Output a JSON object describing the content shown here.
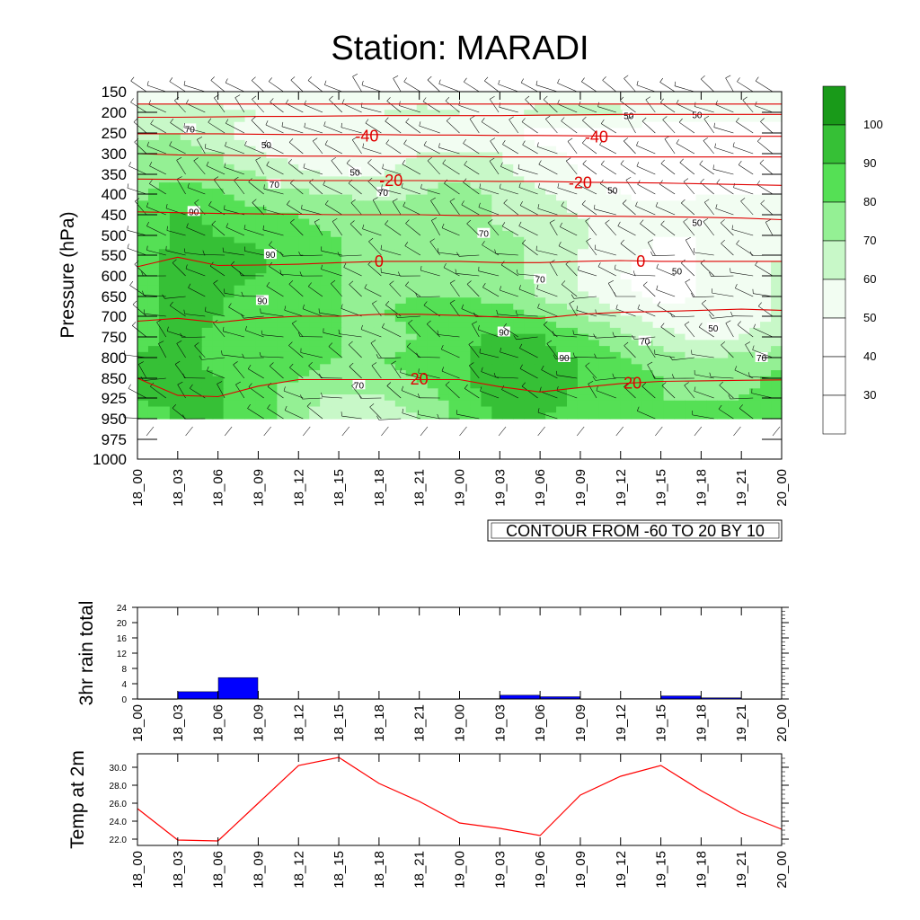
{
  "page": {
    "title": "Station: MARADI"
  },
  "chart_data": [
    {
      "id": "pressure-time",
      "type": "heatmap",
      "title": "Station: MARADI",
      "ylabel": "Pressure (hPa)",
      "xlabel": "",
      "x_ticks": [
        "18_00",
        "18_03",
        "18_06",
        "18_09",
        "18_12",
        "18_15",
        "18_18",
        "18_21",
        "19_00",
        "19_03",
        "19_06",
        "19_09",
        "19_12",
        "19_15",
        "19_18",
        "19_21",
        "20_00"
      ],
      "y_ticks": [
        "150",
        "200",
        "250",
        "300",
        "350",
        "400",
        "450",
        "500",
        "550",
        "600",
        "650",
        "700",
        "750",
        "800",
        "850",
        "925",
        "950",
        "975",
        "1000"
      ],
      "fill_variable": "relative humidity (%)",
      "fill_levels": [
        "30",
        "40",
        "50",
        "60",
        "70",
        "80",
        "90",
        "100"
      ],
      "fill_colors": [
        "#ffffff",
        "#ffffff",
        "#f2fdf2",
        "#c8f8c8",
        "#94f094",
        "#55e055",
        "#36c036",
        "#199a19"
      ],
      "humidity_grid_levels_hpa": [
        150,
        200,
        250,
        300,
        350,
        400,
        450,
        500,
        550,
        600,
        650,
        700,
        750,
        800,
        850,
        925,
        950
      ],
      "humidity_grid": [
        [
          55,
          55,
          55,
          55,
          55,
          55,
          55,
          55,
          55,
          55,
          55,
          55,
          55,
          55,
          55,
          55,
          55
        ],
        [
          62,
          66,
          62,
          60,
          58,
          60,
          60,
          62,
          60,
          58,
          62,
          64,
          62,
          55,
          55,
          55,
          55
        ],
        [
          68,
          70,
          62,
          55,
          52,
          50,
          50,
          55,
          60,
          50,
          48,
          48,
          45,
          45,
          45,
          45,
          45
        ],
        [
          72,
          75,
          70,
          60,
          55,
          52,
          55,
          60,
          60,
          60,
          52,
          48,
          45,
          44,
          44,
          44,
          44
        ],
        [
          75,
          78,
          75,
          70,
          62,
          58,
          60,
          65,
          68,
          63,
          55,
          50,
          46,
          45,
          45,
          45,
          45
        ],
        [
          78,
          85,
          82,
          75,
          72,
          70,
          65,
          70,
          75,
          68,
          62,
          55,
          50,
          48,
          50,
          50,
          50
        ],
        [
          82,
          92,
          88,
          82,
          80,
          78,
          78,
          78,
          75,
          68,
          65,
          60,
          55,
          52,
          52,
          52,
          58
        ],
        [
          82,
          92,
          90,
          88,
          82,
          80,
          78,
          80,
          78,
          72,
          68,
          62,
          55,
          50,
          50,
          55,
          55
        ],
        [
          84,
          94,
          92,
          92,
          84,
          80,
          78,
          80,
          78,
          75,
          68,
          60,
          52,
          48,
          50,
          55,
          60
        ],
        [
          84,
          95,
          93,
          90,
          84,
          80,
          78,
          80,
          78,
          75,
          68,
          58,
          50,
          46,
          50,
          55,
          62
        ],
        [
          86,
          95,
          92,
          86,
          82,
          80,
          78,
          80,
          80,
          78,
          70,
          62,
          52,
          48,
          50,
          55,
          62
        ],
        [
          86,
          96,
          90,
          84,
          82,
          80,
          80,
          82,
          85,
          85,
          80,
          72,
          62,
          55,
          52,
          55,
          62
        ],
        [
          88,
          92,
          88,
          84,
          82,
          80,
          70,
          82,
          88,
          92,
          90,
          82,
          72,
          65,
          58,
          60,
          66
        ],
        [
          90,
          92,
          88,
          84,
          82,
          80,
          80,
          82,
          88,
          94,
          94,
          90,
          82,
          75,
          70,
          72,
          76
        ],
        [
          94,
          92,
          90,
          84,
          80,
          78,
          78,
          80,
          88,
          95,
          95,
          90,
          84,
          80,
          78,
          78,
          82
        ],
        [
          90,
          93,
          92,
          84,
          72,
          68,
          68,
          75,
          85,
          94,
          94,
          88,
          82,
          80,
          80,
          80,
          82
        ],
        [
          85,
          90,
          90,
          84,
          72,
          65,
          65,
          70,
          82,
          92,
          90,
          86,
          82,
          80,
          80,
          80,
          82
        ]
      ],
      "humidity_contour_labels": [
        {
          "text": "70",
          "t": 1.3,
          "p": 240
        },
        {
          "text": "50",
          "t": 3.2,
          "p": 278
        },
        {
          "text": "50",
          "t": 5.4,
          "p": 345
        },
        {
          "text": "70",
          "t": 3.4,
          "p": 375
        },
        {
          "text": "70",
          "t": 6.1,
          "p": 395
        },
        {
          "text": "90",
          "t": 1.4,
          "p": 442
        },
        {
          "text": "90",
          "t": 3.3,
          "p": 548
        },
        {
          "text": "90",
          "t": 3.1,
          "p": 660
        },
        {
          "text": "70",
          "t": 8.6,
          "p": 495
        },
        {
          "text": "70",
          "t": 10.0,
          "p": 608
        },
        {
          "text": "90",
          "t": 9.1,
          "p": 738
        },
        {
          "text": "90",
          "t": 10.6,
          "p": 800
        },
        {
          "text": "70",
          "t": 5.5,
          "p": 875
        },
        {
          "text": "70",
          "t": 12.6,
          "p": 760
        },
        {
          "text": "70",
          "t": 15.5,
          "p": 800
        },
        {
          "text": "50",
          "t": 12.2,
          "p": 208
        },
        {
          "text": "50",
          "t": 13.9,
          "p": 205
        },
        {
          "text": "50",
          "t": 11.8,
          "p": 390
        },
        {
          "text": "50",
          "t": 13.9,
          "p": 468
        },
        {
          "text": "50",
          "t": 13.4,
          "p": 588
        },
        {
          "text": "50",
          "t": 14.3,
          "p": 728
        }
      ],
      "temperature_contours": [
        {
          "level": "-40",
          "p": [
            180,
            180,
            180,
            180,
            180,
            180,
            180,
            180,
            180,
            180,
            180,
            180,
            180,
            180,
            180,
            180,
            180
          ]
        },
        {
          "level": "-40",
          "p": [
            212,
            212,
            211,
            210,
            210,
            209,
            208,
            208,
            208,
            208,
            207,
            206,
            205,
            205,
            205,
            205,
            205
          ]
        },
        {
          "level": "-40",
          "p": [
            252,
            252,
            252,
            253,
            254,
            254,
            254,
            255,
            255,
            256,
            256,
            257,
            258,
            258,
            258,
            258,
            258
          ]
        },
        {
          "level": "-40",
          "p": [
            300,
            303,
            304,
            305,
            306,
            306,
            307,
            307,
            307,
            308,
            308,
            308,
            308,
            308,
            308,
            308,
            308
          ]
        },
        {
          "level": "-20",
          "p": [
            362,
            363,
            364,
            365,
            366,
            366,
            366,
            366,
            367,
            368,
            368,
            370,
            371,
            372,
            374,
            376,
            378
          ]
        },
        {
          "level": "0",
          "p": [
            443,
            445,
            447,
            448,
            449,
            450,
            450,
            450,
            452,
            452,
            452,
            453,
            454,
            455,
            456,
            458,
            462
          ]
        },
        {
          "level": "0",
          "p": [
            578,
            555,
            575,
            574,
            572,
            568,
            565,
            565,
            565,
            568,
            568,
            565,
            563,
            565,
            565,
            565,
            565
          ]
        },
        {
          "level": "20",
          "p": [
            712,
            705,
            715,
            705,
            700,
            700,
            695,
            695,
            698,
            702,
            705,
            695,
            690,
            688,
            685,
            682,
            685
          ]
        },
        {
          "level": "20",
          "p": [
            850,
            915,
            920,
            880,
            855,
            855,
            855,
            855,
            855,
            882,
            902,
            885,
            870,
            862,
            860,
            858,
            856
          ]
        }
      ],
      "temperature_labels": [
        {
          "text": "-40",
          "t": 5.7,
          "p": 258
        },
        {
          "text": "-40",
          "t": 11.4,
          "p": 260
        },
        {
          "text": "-20",
          "t": 6.3,
          "p": 366
        },
        {
          "text": "-20",
          "t": 11.0,
          "p": 372
        },
        {
          "text": "0",
          "t": 6.0,
          "p": 565
        },
        {
          "text": "0",
          "t": 12.5,
          "p": 565
        },
        {
          "text": "20",
          "t": 7.0,
          "p": 853
        },
        {
          "text": "20",
          "t": 12.3,
          "p": 868
        }
      ],
      "info_label": "CONTOUR FROM -60 TO 20 BY 10"
    },
    {
      "id": "rain",
      "type": "bar",
      "ylabel": "3hr rain total",
      "ylim": [
        0,
        24
      ],
      "y_tick_labels": [
        "0",
        "4",
        "8",
        "12",
        "16",
        "20",
        "24"
      ],
      "categories": [
        "18_00",
        "18_03",
        "18_06",
        "18_09",
        "18_12",
        "18_15",
        "18_18",
        "18_21",
        "19_00",
        "19_03",
        "19_06",
        "19_09",
        "19_12",
        "19_15",
        "19_18",
        "19_21",
        "20_00"
      ],
      "values": [
        0.0,
        1.9,
        5.6,
        0.0,
        0.0,
        0.0,
        0.0,
        0.0,
        0.1,
        1.0,
        0.6,
        0.0,
        0.1,
        0.8,
        0.3,
        0.0,
        0.0
      ],
      "bar_color": "#0000ff"
    },
    {
      "id": "temp2m",
      "type": "line",
      "ylabel": "Temp at 2m",
      "ylim": [
        21.3,
        31.5
      ],
      "y_tick_labels": [
        "22.0",
        "24.0",
        "26.0",
        "28.0",
        "30.0"
      ],
      "categories": [
        "18_00",
        "18_03",
        "18_06",
        "18_09",
        "18_12",
        "18_15",
        "18_18",
        "18_21",
        "19_00",
        "19_03",
        "19_06",
        "19_09",
        "19_12",
        "19_15",
        "19_18",
        "19_21",
        "20_00"
      ],
      "values": [
        25.4,
        21.9,
        21.8,
        26.0,
        30.2,
        31.1,
        28.2,
        26.2,
        23.8,
        23.2,
        22.4,
        26.9,
        29.0,
        30.2,
        27.4,
        24.9,
        23.1
      ],
      "line_color": "#ff0000"
    }
  ]
}
